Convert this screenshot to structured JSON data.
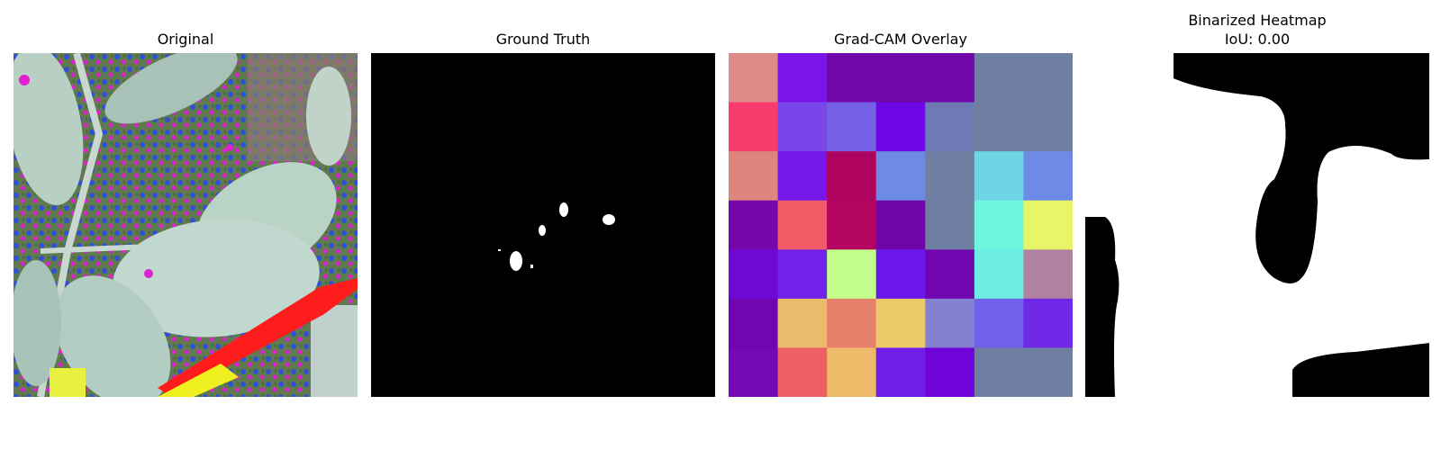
{
  "figure": {
    "panels": [
      {
        "title": "Original"
      },
      {
        "title": "Ground Truth"
      },
      {
        "title": "Grad-CAM Overlay"
      },
      {
        "title": "Binarized Heatmap",
        "subtitle": "IoU: 0.00"
      }
    ]
  },
  "gradcam": {
    "grid_rows": 7,
    "grid_cols": 7,
    "cells": [
      [
        "#df8a89",
        "#7b16ea",
        "#6f07a9",
        "#6f07a9",
        "#6f07a9",
        "#6e7fa1",
        "#6e7fa1"
      ],
      [
        "#f73c6d",
        "#7a46ea",
        "#7561e6",
        "#6d07e5",
        "#6e7ab3",
        "#6e7fa1",
        "#6e7fa1"
      ],
      [
        "#df857f",
        "#7617e9",
        "#ae035f",
        "#6e8be4",
        "#6e7fa1",
        "#6fd4e4",
        "#6d8be4"
      ],
      [
        "#7307ac",
        "#f15c66",
        "#b3045f",
        "#7005a7",
        "#6e7fa1",
        "#6ef6de",
        "#e8f566"
      ],
      [
        "#6e08d4",
        "#7322e9",
        "#c2fd8c",
        "#6c17e9",
        "#6f06af",
        "#6eede3",
        "#b082a0"
      ],
      [
        "#7006b3",
        "#ebbb6c",
        "#e6806b",
        "#eacb69",
        "#8581d1",
        "#7061e8",
        "#7127e6"
      ],
      [
        "#7408b2",
        "#ee5f66",
        "#edbb69",
        "#6e1ee6",
        "#6f03d8",
        "#6e7fa1",
        "#6e7fa1"
      ]
    ]
  }
}
